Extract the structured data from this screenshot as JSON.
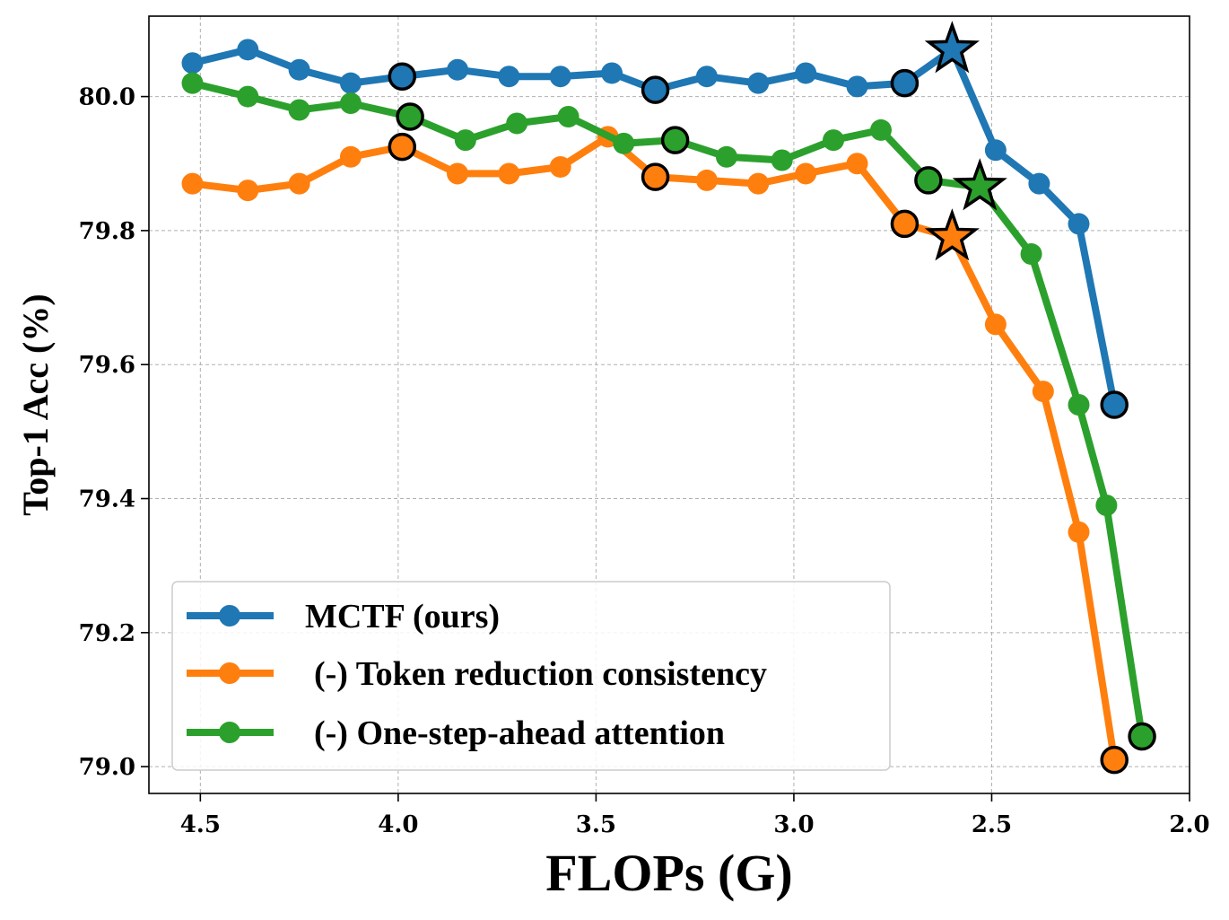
{
  "chart_data": {
    "type": "line",
    "title": "",
    "xlabel": "FLOPs (G)",
    "ylabel": "Top-1 Acc (%)",
    "xlim": [
      4.63,
      2.0
    ],
    "ylim": [
      78.96,
      80.12
    ],
    "x_reversed": true,
    "grid": true,
    "legend_placement": "lower-left",
    "xticks": [
      4.5,
      4.0,
      3.5,
      3.0,
      2.5,
      2.0
    ],
    "xtick_labels": [
      "4.5",
      "4.0",
      "3.5",
      "3.0",
      "2.5",
      "2.0"
    ],
    "yticks": [
      79.0,
      79.2,
      79.4,
      79.6,
      79.8,
      80.0
    ],
    "ytick_labels": [
      "79.0",
      "79.2",
      "79.4",
      "79.6",
      "79.8",
      "80.0"
    ],
    "series": [
      {
        "name": "MCTF (ours)",
        "color": "#1f77b4",
        "x": [
          4.52,
          4.38,
          4.25,
          4.12,
          3.99,
          3.85,
          3.72,
          3.59,
          3.46,
          3.35,
          3.22,
          3.09,
          2.97,
          2.84,
          2.72,
          2.6,
          2.49,
          2.38,
          2.28,
          2.19
        ],
        "y": [
          80.05,
          80.07,
          80.04,
          80.02,
          80.03,
          80.04,
          80.03,
          80.03,
          80.035,
          80.01,
          80.03,
          80.02,
          80.035,
          80.015,
          80.02,
          80.07,
          79.92,
          79.87,
          79.81,
          79.54
        ],
        "ringed_points": [
          4,
          9,
          14,
          19
        ],
        "star_point": 15
      },
      {
        "name": "(-) Token reduction consistency",
        "color": "#ff7f0e",
        "x": [
          4.52,
          4.38,
          4.25,
          4.12,
          3.99,
          3.85,
          3.72,
          3.59,
          3.47,
          3.35,
          3.22,
          3.09,
          2.97,
          2.84,
          2.72,
          2.6,
          2.49,
          2.37,
          2.28,
          2.19
        ],
        "y": [
          79.87,
          79.86,
          79.87,
          79.91,
          79.925,
          79.885,
          79.885,
          79.895,
          79.94,
          79.88,
          79.875,
          79.87,
          79.885,
          79.9,
          79.81,
          79.79,
          79.66,
          79.56,
          79.35,
          79.01
        ],
        "ringed_points": [
          4,
          9,
          14,
          19
        ],
        "star_point": 15
      },
      {
        "name": "(-) One-step-ahead attention",
        "color": "#2ca02c",
        "x": [
          4.52,
          4.38,
          4.25,
          4.12,
          3.97,
          3.83,
          3.7,
          3.57,
          3.43,
          3.3,
          3.17,
          3.03,
          2.9,
          2.78,
          2.66,
          2.53,
          2.4,
          2.28,
          2.21,
          2.12
        ],
        "y": [
          80.02,
          80.0,
          79.98,
          79.99,
          79.97,
          79.935,
          79.96,
          79.97,
          79.93,
          79.935,
          79.91,
          79.905,
          79.935,
          79.95,
          79.875,
          79.865,
          79.765,
          79.54,
          79.39,
          79.045
        ],
        "ringed_points": [
          4,
          9,
          14,
          19
        ],
        "star_point": 15
      }
    ]
  }
}
